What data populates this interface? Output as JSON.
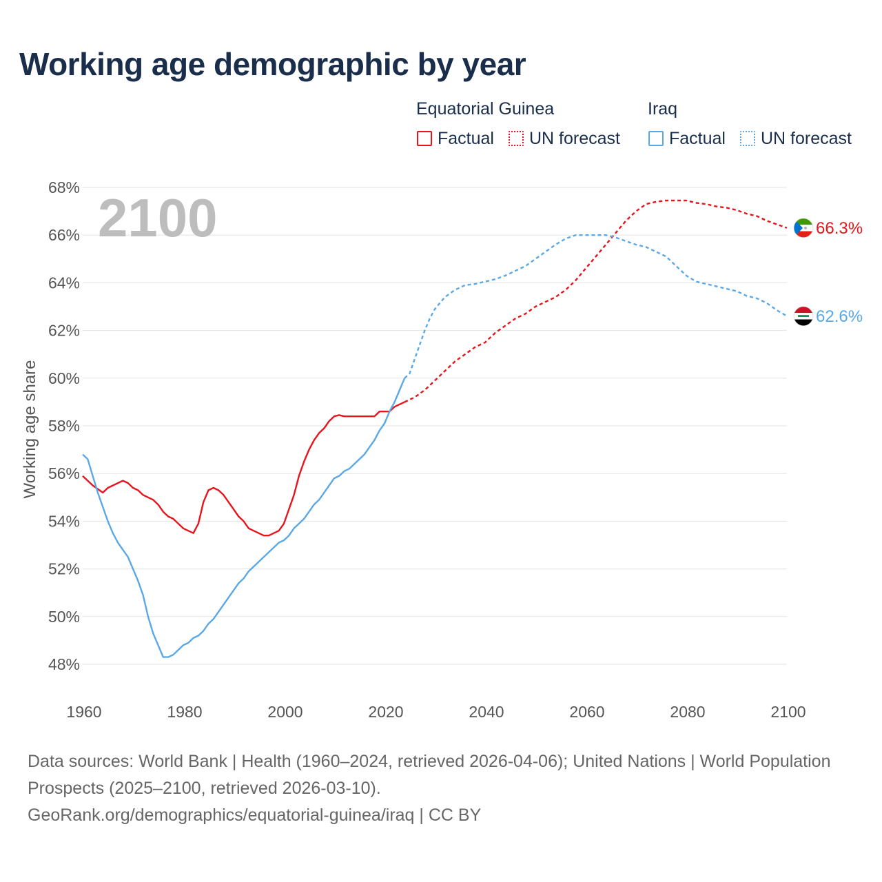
{
  "chart_data": {
    "type": "line",
    "title": "Working age demographic by year",
    "ylabel": "Working age share",
    "year_label": "2100",
    "xlim": [
      1960,
      2100
    ],
    "ylim": [
      47,
      69
    ],
    "x_ticks": [
      1960,
      1980,
      2000,
      2020,
      2040,
      2060,
      2080,
      2100
    ],
    "x_tick_labels": [
      "1960",
      "1980",
      "2000",
      "2020",
      "2040",
      "2060",
      "2080",
      "2100"
    ],
    "y_ticks": [
      48,
      50,
      52,
      54,
      56,
      58,
      60,
      62,
      64,
      66,
      68
    ],
    "y_tick_labels": [
      "48%",
      "50%",
      "52%",
      "54%",
      "56%",
      "58%",
      "60%",
      "62%",
      "64%",
      "66%",
      "68%"
    ],
    "legend": {
      "groups": [
        {
          "name": "Equatorial Guinea",
          "factual": "Factual",
          "forecast": "UN forecast"
        },
        {
          "name": "Iraq",
          "factual": "Factual",
          "forecast": "UN forecast"
        }
      ]
    },
    "series": [
      {
        "name": "Equatorial Guinea",
        "color": "#e8131b",
        "end_label": "66.3%",
        "factual": [
          [
            1960,
            55.9
          ],
          [
            1962,
            55.5
          ],
          [
            1964,
            55.2
          ],
          [
            1965,
            55.4
          ],
          [
            1968,
            55.7
          ],
          [
            1969,
            55.6
          ],
          [
            1970,
            55.4
          ],
          [
            1971,
            55.3
          ],
          [
            1972,
            55.1
          ],
          [
            1974,
            54.9
          ],
          [
            1975,
            54.7
          ],
          [
            1976,
            54.4
          ],
          [
            1977,
            54.2
          ],
          [
            1978,
            54.1
          ],
          [
            1980,
            53.7
          ],
          [
            1982,
            53.5
          ],
          [
            1983,
            53.9
          ],
          [
            1984,
            54.8
          ],
          [
            1985,
            55.3
          ],
          [
            1986,
            55.4
          ],
          [
            1987,
            55.3
          ],
          [
            1988,
            55.1
          ],
          [
            1990,
            54.5
          ],
          [
            1991,
            54.2
          ],
          [
            1992,
            54.0
          ],
          [
            1993,
            53.7
          ],
          [
            1996,
            53.4
          ],
          [
            1997,
            53.4
          ],
          [
            1999,
            53.6
          ],
          [
            2000,
            53.9
          ],
          [
            2001,
            54.5
          ],
          [
            2002,
            55.1
          ],
          [
            2003,
            55.9
          ],
          [
            2004,
            56.5
          ],
          [
            2005,
            57.0
          ],
          [
            2006,
            57.4
          ],
          [
            2007,
            57.7
          ],
          [
            2008,
            57.9
          ],
          [
            2009,
            58.2
          ],
          [
            2010,
            58.4
          ],
          [
            2011,
            58.45
          ],
          [
            2012,
            58.4
          ],
          [
            2018,
            58.4
          ],
          [
            2019,
            58.6
          ],
          [
            2021,
            58.6
          ],
          [
            2022,
            58.8
          ],
          [
            2024,
            59.0
          ]
        ],
        "forecast": [
          [
            2024,
            59.0
          ],
          [
            2026,
            59.2
          ],
          [
            2028,
            59.5
          ],
          [
            2030,
            59.9
          ],
          [
            2032,
            60.3
          ],
          [
            2034,
            60.7
          ],
          [
            2036,
            61.0
          ],
          [
            2038,
            61.3
          ],
          [
            2040,
            61.5
          ],
          [
            2042,
            61.9
          ],
          [
            2044,
            62.2
          ],
          [
            2046,
            62.5
          ],
          [
            2048,
            62.7
          ],
          [
            2050,
            63.0
          ],
          [
            2052,
            63.2
          ],
          [
            2054,
            63.4
          ],
          [
            2056,
            63.7
          ],
          [
            2058,
            64.1
          ],
          [
            2060,
            64.6
          ],
          [
            2062,
            65.1
          ],
          [
            2064,
            65.6
          ],
          [
            2066,
            66.1
          ],
          [
            2068,
            66.6
          ],
          [
            2070,
            67.0
          ],
          [
            2072,
            67.3
          ],
          [
            2074,
            67.4
          ],
          [
            2076,
            67.45
          ],
          [
            2078,
            67.45
          ],
          [
            2080,
            67.45
          ],
          [
            2082,
            67.35
          ],
          [
            2084,
            67.3
          ],
          [
            2086,
            67.2
          ],
          [
            2088,
            67.15
          ],
          [
            2090,
            67.05
          ],
          [
            2092,
            66.9
          ],
          [
            2094,
            66.8
          ],
          [
            2096,
            66.6
          ],
          [
            2098,
            66.45
          ],
          [
            2100,
            66.3
          ]
        ]
      },
      {
        "name": "Iraq",
        "color": "#5aa8e6",
        "end_label": "62.6%",
        "factual": [
          [
            1960,
            56.8
          ],
          [
            1961,
            56.6
          ],
          [
            1962,
            55.9
          ],
          [
            1963,
            55.2
          ],
          [
            1964,
            54.6
          ],
          [
            1965,
            54.0
          ],
          [
            1966,
            53.5
          ],
          [
            1967,
            53.1
          ],
          [
            1968,
            52.8
          ],
          [
            1969,
            52.5
          ],
          [
            1970,
            52.0
          ],
          [
            1971,
            51.5
          ],
          [
            1972,
            50.9
          ],
          [
            1973,
            50.0
          ],
          [
            1974,
            49.3
          ],
          [
            1975,
            48.8
          ],
          [
            1976,
            48.3
          ],
          [
            1977,
            48.3
          ],
          [
            1978,
            48.4
          ],
          [
            1979,
            48.6
          ],
          [
            1980,
            48.8
          ],
          [
            1981,
            48.9
          ],
          [
            1982,
            49.1
          ],
          [
            1983,
            49.2
          ],
          [
            1984,
            49.4
          ],
          [
            1985,
            49.7
          ],
          [
            1986,
            49.9
          ],
          [
            1988,
            50.5
          ],
          [
            1990,
            51.1
          ],
          [
            1991,
            51.4
          ],
          [
            1992,
            51.6
          ],
          [
            1993,
            51.9
          ],
          [
            1995,
            52.3
          ],
          [
            1997,
            52.7
          ],
          [
            1999,
            53.1
          ],
          [
            2000,
            53.2
          ],
          [
            2001,
            53.4
          ],
          [
            2002,
            53.7
          ],
          [
            2004,
            54.1
          ],
          [
            2005,
            54.4
          ],
          [
            2006,
            54.7
          ],
          [
            2007,
            54.9
          ],
          [
            2008,
            55.2
          ],
          [
            2010,
            55.8
          ],
          [
            2011,
            55.9
          ],
          [
            2012,
            56.1
          ],
          [
            2013,
            56.2
          ],
          [
            2014,
            56.4
          ],
          [
            2016,
            56.8
          ],
          [
            2017,
            57.1
          ],
          [
            2018,
            57.4
          ],
          [
            2019,
            57.8
          ],
          [
            2020,
            58.1
          ],
          [
            2021,
            58.6
          ],
          [
            2022,
            59.0
          ],
          [
            2023,
            59.5
          ],
          [
            2024,
            60.0
          ]
        ],
        "forecast": [
          [
            2024,
            60.0
          ],
          [
            2025,
            60.2
          ],
          [
            2026,
            60.8
          ],
          [
            2027,
            61.4
          ],
          [
            2028,
            62.0
          ],
          [
            2029,
            62.5
          ],
          [
            2030,
            62.9
          ],
          [
            2032,
            63.4
          ],
          [
            2034,
            63.7
          ],
          [
            2036,
            63.9
          ],
          [
            2038,
            63.95
          ],
          [
            2040,
            64.05
          ],
          [
            2042,
            64.15
          ],
          [
            2044,
            64.3
          ],
          [
            2046,
            64.5
          ],
          [
            2048,
            64.7
          ],
          [
            2050,
            65.0
          ],
          [
            2052,
            65.3
          ],
          [
            2054,
            65.6
          ],
          [
            2056,
            65.85
          ],
          [
            2058,
            66.0
          ],
          [
            2060,
            66.0
          ],
          [
            2062,
            66.0
          ],
          [
            2064,
            66.0
          ],
          [
            2066,
            65.9
          ],
          [
            2068,
            65.75
          ],
          [
            2070,
            65.6
          ],
          [
            2072,
            65.5
          ],
          [
            2074,
            65.3
          ],
          [
            2076,
            65.1
          ],
          [
            2078,
            64.7
          ],
          [
            2080,
            64.3
          ],
          [
            2082,
            64.05
          ],
          [
            2084,
            63.95
          ],
          [
            2086,
            63.85
          ],
          [
            2088,
            63.75
          ],
          [
            2090,
            63.65
          ],
          [
            2092,
            63.45
          ],
          [
            2094,
            63.35
          ],
          [
            2096,
            63.15
          ],
          [
            2098,
            62.85
          ],
          [
            2100,
            62.6
          ]
        ]
      }
    ]
  },
  "footer": {
    "sources_line": "Data sources: World Bank | Health (1960–2024, retrieved 2026-04-06); United Nations | World Population Prospects (2025–2100, retrieved 2026-03-10).",
    "credit_line": "GeoRank.org/demographics/equatorial-guinea/iraq | CC BY"
  }
}
